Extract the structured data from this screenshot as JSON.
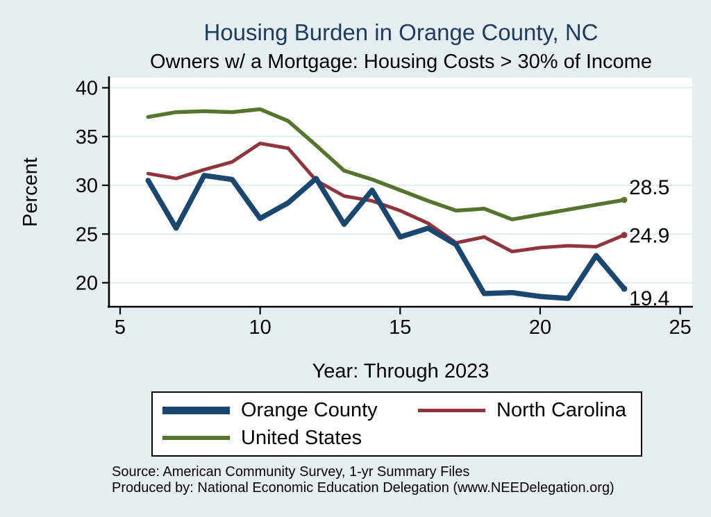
{
  "header": {
    "title": "Housing Burden in Orange County, NC",
    "subtitle": "Owners w/ a Mortgage: Housing Costs > 30% of Income"
  },
  "chart_data": {
    "type": "line",
    "x": [
      6,
      7,
      8,
      9,
      10,
      11,
      12,
      13,
      14,
      15,
      16,
      17,
      18,
      19,
      20,
      21,
      22,
      23
    ],
    "series": [
      {
        "name": "Orange County",
        "color": "#1a476f",
        "line_width": 7.5,
        "values": [
          30.5,
          25.6,
          31.0,
          30.6,
          26.6,
          28.2,
          30.7,
          26.0,
          29.5,
          24.7,
          25.6,
          23.9,
          18.9,
          19.0,
          18.6,
          18.4,
          22.8,
          19.4
        ],
        "end_label": "19.4",
        "end_label_position": "below"
      },
      {
        "name": "North Carolina",
        "color": "#90353b",
        "line_width": 5,
        "values": [
          31.2,
          30.7,
          31.6,
          32.4,
          34.3,
          33.8,
          30.5,
          28.9,
          28.4,
          27.4,
          26.1,
          24.1,
          24.7,
          23.2,
          23.6,
          23.8,
          23.7,
          24.9
        ],
        "end_label": "24.9",
        "end_label_position": "right"
      },
      {
        "name": "United States",
        "color": "#55752f",
        "line_width": 5.5,
        "values": [
          37.0,
          37.5,
          37.6,
          37.5,
          37.8,
          36.6,
          34.1,
          31.5,
          30.6,
          29.5,
          28.4,
          27.4,
          27.6,
          26.5,
          27.0,
          27.5,
          28.0,
          28.5
        ],
        "end_label": "28.5",
        "end_label_position": "above"
      }
    ],
    "xlabel": "Year: Through 2023",
    "ylabel": "Percent",
    "x_ticks": [
      5,
      10,
      15,
      20,
      25
    ],
    "y_ticks": [
      20,
      25,
      30,
      35,
      40
    ],
    "xlim": [
      5,
      25
    ],
    "ylim": [
      17.5,
      40.5
    ],
    "grid": "horizontal",
    "gridline_color": "#d8e6ec",
    "plot_background": "#ffffff",
    "page_background": "#e5eef1",
    "legend_position": "bottom"
  },
  "notes": {
    "source": "Source: American Community Survey, 1-yr Summary Files",
    "produced_by": "Produced by: National Economic Education Delegation (www.NEEDelegation.org)"
  }
}
